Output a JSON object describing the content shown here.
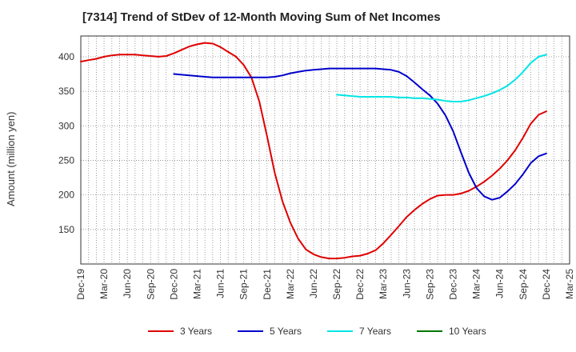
{
  "chart_data": {
    "type": "line",
    "title": "[7314]  Trend of StDev of 12-Month Moving Sum of Net Incomes",
    "ylabel": "Amount (million yen)",
    "xlabel": "",
    "ylim": [
      100,
      430
    ],
    "yticks": [
      150,
      200,
      250,
      300,
      350,
      400
    ],
    "xticks": [
      "Dec-19",
      "Mar-20",
      "Jun-20",
      "Sep-20",
      "Dec-20",
      "Mar-21",
      "Jun-21",
      "Sep-21",
      "Dec-21",
      "Mar-22",
      "Jun-22",
      "Sep-22",
      "Dec-22",
      "Mar-23",
      "Jun-23",
      "Sep-23",
      "Dec-23",
      "Mar-24",
      "Jun-24",
      "Sep-24",
      "Dec-24",
      "Mar-25"
    ],
    "x_quarter_months": [
      "Dec-19",
      "Mar-20",
      "Jun-20",
      "Sep-20",
      "Dec-20",
      "Mar-21",
      "Jun-21",
      "Sep-21",
      "Dec-21",
      "Mar-22",
      "Jun-22",
      "Sep-22",
      "Dec-22",
      "Mar-23",
      "Jun-23",
      "Sep-23",
      "Dec-23",
      "Mar-24",
      "Jun-24",
      "Sep-24",
      "Dec-24"
    ],
    "grid": true,
    "legend_position": "bottom",
    "series": [
      {
        "name": "3 Years",
        "color": "#e00000",
        "x": [
          0,
          0.33,
          0.67,
          1,
          1.33,
          1.67,
          2,
          2.33,
          2.67,
          3,
          3.33,
          3.67,
          4,
          4.33,
          4.67,
          5,
          5.33,
          5.67,
          6,
          6.33,
          6.67,
          7,
          7.33,
          7.67,
          8,
          8.33,
          8.67,
          9,
          9.33,
          9.67,
          10,
          10.33,
          10.67,
          11,
          11.33,
          11.67,
          12,
          12.33,
          12.67,
          13,
          13.33,
          13.67,
          14,
          14.33,
          14.67,
          15,
          15.33,
          15.67,
          16,
          16.33,
          16.67,
          17,
          17.33,
          17.67,
          18,
          18.33,
          18.67,
          19,
          19.33,
          19.67,
          20
        ],
        "values": [
          393,
          395,
          397,
          400,
          402,
          403,
          403,
          403,
          402,
          401,
          400,
          401,
          405,
          410,
          415,
          418,
          420,
          419,
          414,
          407,
          400,
          388,
          370,
          335,
          285,
          232,
          190,
          160,
          137,
          121,
          114,
          110,
          108,
          108,
          109,
          111,
          112,
          115,
          120,
          130,
          142,
          155,
          168,
          178,
          187,
          194,
          199,
          200,
          200,
          202,
          206,
          212,
          219,
          228,
          238,
          250,
          265,
          283,
          303,
          316,
          321
        ]
      },
      {
        "name": "5 Years",
        "color": "#0000cc",
        "x": [
          4,
          4.33,
          4.67,
          5,
          5.33,
          5.67,
          6,
          6.33,
          6.67,
          7,
          7.33,
          7.67,
          8,
          8.33,
          8.67,
          9,
          9.33,
          9.67,
          10,
          10.33,
          10.67,
          11,
          11.33,
          11.67,
          12,
          12.33,
          12.67,
          13,
          13.33,
          13.67,
          14,
          14.33,
          14.67,
          15,
          15.33,
          15.67,
          16,
          16.33,
          16.67,
          17,
          17.33,
          17.67,
          18,
          18.33,
          18.67,
          19,
          19.33,
          19.67,
          20
        ],
        "values": [
          375,
          374,
          373,
          372,
          371,
          370,
          370,
          370,
          370,
          370,
          370,
          370,
          370,
          371,
          373,
          376,
          378,
          380,
          381,
          382,
          383,
          383,
          383,
          383,
          383,
          383,
          383,
          382,
          381,
          378,
          372,
          363,
          353,
          344,
          332,
          315,
          292,
          262,
          232,
          210,
          198,
          193,
          196,
          205,
          216,
          230,
          246,
          256,
          260
        ]
      },
      {
        "name": "7 Years",
        "color": "#00e5e5",
        "x": [
          11,
          11.33,
          11.67,
          12,
          12.33,
          12.67,
          13,
          13.33,
          13.67,
          14,
          14.33,
          14.67,
          15,
          15.33,
          15.67,
          16,
          16.33,
          16.67,
          17,
          17.33,
          17.67,
          18,
          18.33,
          18.67,
          19,
          19.33,
          19.67,
          20
        ],
        "values": [
          345,
          344,
          343,
          342,
          342,
          342,
          342,
          342,
          341,
          341,
          340,
          340,
          339,
          338,
          336,
          335,
          335,
          337,
          340,
          343,
          347,
          352,
          358,
          367,
          378,
          391,
          400,
          403
        ]
      },
      {
        "name": "10 Years",
        "color": "#007700",
        "x": [],
        "values": []
      }
    ]
  }
}
